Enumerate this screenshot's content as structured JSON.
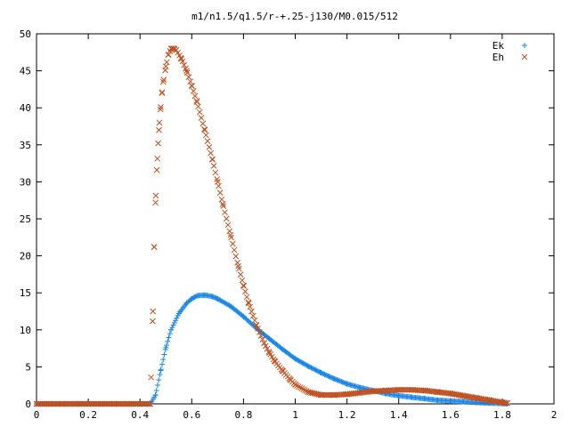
{
  "chart_data": {
    "type": "scatter",
    "title": "m1/n1.5/q1.5/r-+.25-j130/M0.015/512",
    "xlabel": "",
    "ylabel": "",
    "xlim": [
      0,
      2
    ],
    "ylim": [
      0,
      50
    ],
    "x_ticks": [
      0,
      0.2,
      0.4,
      0.6,
      0.8,
      1,
      1.2,
      1.4,
      1.6,
      1.8,
      2
    ],
    "x_tick_labels": [
      "0",
      "0.2",
      "0.4",
      "0.6",
      "0.8",
      "1",
      "1.2",
      "1.4",
      "1.6",
      "1.8",
      "2"
    ],
    "y_ticks": [
      0,
      5,
      10,
      15,
      20,
      25,
      30,
      35,
      40,
      45,
      50
    ],
    "y_tick_labels": [
      "0",
      "5",
      "10",
      "15",
      "20",
      "25",
      "30",
      "35",
      "40",
      "45",
      "50"
    ],
    "grid": false,
    "legend_position": "top-right",
    "series": [
      {
        "name": "Ek",
        "marker": "plus",
        "color": "#1a87e6",
        "x": [
          0,
          0.05,
          0.1,
          0.15,
          0.2,
          0.25,
          0.3,
          0.35,
          0.4,
          0.44,
          0.46,
          0.48,
          0.5,
          0.52,
          0.55,
          0.58,
          0.6,
          0.62,
          0.65,
          0.68,
          0.7,
          0.75,
          0.8,
          0.85,
          0.9,
          0.95,
          1.0,
          1.05,
          1.1,
          1.15,
          1.2,
          1.25,
          1.3,
          1.35,
          1.4,
          1.45,
          1.5,
          1.55,
          1.6,
          1.65,
          1.7,
          1.75,
          1.8,
          1.82
        ],
        "y": [
          0,
          0,
          0,
          0,
          0,
          0,
          0,
          0,
          0,
          0,
          1.2,
          4.5,
          7.6,
          10.0,
          12.2,
          13.6,
          14.2,
          14.6,
          14.7,
          14.5,
          14.2,
          13.2,
          11.8,
          10.2,
          8.8,
          7.4,
          6.1,
          5.1,
          4.2,
          3.4,
          2.7,
          2.2,
          1.8,
          1.4,
          1.1,
          0.9,
          0.7,
          0.5,
          0.4,
          0.3,
          0.2,
          0.1,
          0.05,
          0
        ]
      },
      {
        "name": "Eh",
        "marker": "cross",
        "color": "#c05020",
        "x": [
          0,
          0.05,
          0.1,
          0.15,
          0.2,
          0.25,
          0.3,
          0.35,
          0.4,
          0.44,
          0.45,
          0.455,
          0.46,
          0.465,
          0.47,
          0.475,
          0.48,
          0.485,
          0.49,
          0.5,
          0.51,
          0.52,
          0.53,
          0.54,
          0.56,
          0.58,
          0.6,
          0.62,
          0.65,
          0.68,
          0.7,
          0.72,
          0.75,
          0.78,
          0.8,
          0.82,
          0.85,
          0.88,
          0.9,
          0.92,
          0.95,
          0.98,
          1.0,
          1.05,
          1.1,
          1.15,
          1.2,
          1.25,
          1.3,
          1.35,
          1.4,
          1.45,
          1.5,
          1.55,
          1.6,
          1.65,
          1.7,
          1.75,
          1.8,
          1.82
        ],
        "y": [
          0,
          0,
          0,
          0,
          0,
          0,
          0,
          0,
          0,
          0,
          12.5,
          21.2,
          27.2,
          31.6,
          35.2,
          38.0,
          40.1,
          42.0,
          43.5,
          45.6,
          47.2,
          48.0,
          48.0,
          47.8,
          46.6,
          45.0,
          43.0,
          40.8,
          37.0,
          33.0,
          30.0,
          27.0,
          22.8,
          18.6,
          16.0,
          13.6,
          10.6,
          8.2,
          6.9,
          5.8,
          4.5,
          3.3,
          2.6,
          1.6,
          1.2,
          1.2,
          1.3,
          1.5,
          1.7,
          1.8,
          1.9,
          1.9,
          1.8,
          1.6,
          1.4,
          1.1,
          0.8,
          0.5,
          0.2,
          0.1
        ]
      }
    ]
  }
}
